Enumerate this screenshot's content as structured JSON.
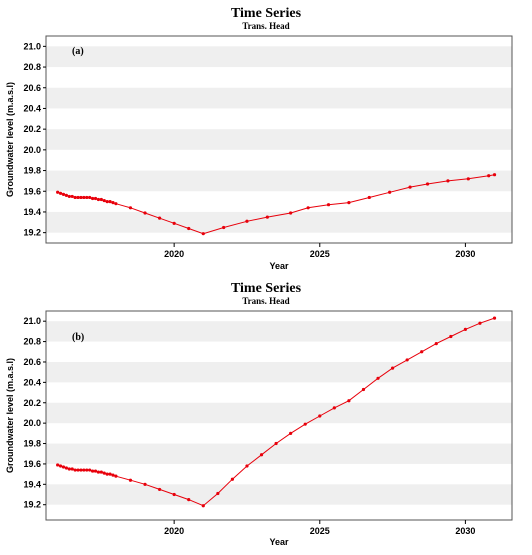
{
  "colors": {
    "series": "#e8000b",
    "band": "#efefef",
    "frame": "#555555"
  },
  "chart_data": [
    {
      "type": "line",
      "title": "Time Series",
      "subtitle": "Trans. Head",
      "panel_label": "(a)",
      "xlabel": "Year",
      "ylabel": "Groundwater level (m.a.s.l)",
      "xlim": [
        2015.6,
        2031.6
      ],
      "ylim": [
        19.1,
        21.1
      ],
      "yticks": [
        19.2,
        19.4,
        19.6,
        19.8,
        20.0,
        20.2,
        20.4,
        20.6,
        20.8,
        21.0
      ],
      "xticks": [
        2020,
        2025,
        2030
      ],
      "grid": "horizontal bands",
      "series": [
        {
          "x": [
            2016.0,
            2016.1,
            2016.2,
            2016.3,
            2016.4,
            2016.5,
            2016.6,
            2016.7,
            2016.8,
            2016.9,
            2017.0,
            2017.1,
            2017.2,
            2017.3,
            2017.4,
            2017.5,
            2017.6,
            2017.7,
            2017.8,
            2017.9,
            2018.0,
            2018.5,
            2019.0,
            2019.5,
            2020.0,
            2020.5,
            2021.0,
            2021.7,
            2022.5,
            2023.2,
            2024.0,
            2024.6,
            2025.3,
            2026.0,
            2026.7,
            2027.4,
            2028.1,
            2028.7,
            2029.4,
            2030.1,
            2030.8,
            2031.0
          ],
          "y": [
            19.59,
            19.58,
            19.57,
            19.56,
            19.55,
            19.55,
            19.54,
            19.54,
            19.54,
            19.54,
            19.54,
            19.54,
            19.53,
            19.53,
            19.52,
            19.52,
            19.51,
            19.5,
            19.5,
            19.49,
            19.48,
            19.44,
            19.39,
            19.34,
            19.29,
            19.24,
            19.19,
            19.25,
            19.31,
            19.35,
            19.39,
            19.44,
            19.47,
            19.49,
            19.54,
            19.59,
            19.64,
            19.67,
            19.7,
            19.72,
            19.75,
            19.76
          ]
        }
      ]
    },
    {
      "type": "line",
      "title": "Time Series",
      "subtitle": "Trans. Head",
      "panel_label": "(b)",
      "xlabel": "Year",
      "ylabel": "Groundwater level (m.a.s.l)",
      "xlim": [
        2015.6,
        2031.6
      ],
      "ylim": [
        19.05,
        21.1
      ],
      "yticks": [
        19.2,
        19.4,
        19.6,
        19.8,
        20.0,
        20.2,
        20.4,
        20.6,
        20.8,
        21.0
      ],
      "xticks": [
        2020,
        2025,
        2030
      ],
      "grid": "horizontal bands",
      "series": [
        {
          "x": [
            2016.0,
            2016.1,
            2016.2,
            2016.3,
            2016.4,
            2016.5,
            2016.6,
            2016.7,
            2016.8,
            2016.9,
            2017.0,
            2017.1,
            2017.2,
            2017.3,
            2017.4,
            2017.5,
            2017.6,
            2017.7,
            2017.8,
            2017.9,
            2018.0,
            2018.5,
            2019.0,
            2019.5,
            2020.0,
            2020.5,
            2021.0,
            2021.5,
            2022.0,
            2022.5,
            2023.0,
            2023.5,
            2024.0,
            2024.5,
            2025.0,
            2025.5,
            2026.0,
            2026.5,
            2027.0,
            2027.5,
            2028.0,
            2028.5,
            2029.0,
            2029.5,
            2030.0,
            2030.5,
            2031.0
          ],
          "y": [
            19.59,
            19.58,
            19.57,
            19.56,
            19.55,
            19.55,
            19.54,
            19.54,
            19.54,
            19.54,
            19.54,
            19.54,
            19.53,
            19.53,
            19.52,
            19.52,
            19.51,
            19.5,
            19.5,
            19.49,
            19.48,
            19.44,
            19.4,
            19.35,
            19.3,
            19.25,
            19.19,
            19.31,
            19.45,
            19.58,
            19.69,
            19.8,
            19.9,
            19.99,
            20.07,
            20.15,
            20.22,
            20.33,
            20.44,
            20.54,
            20.62,
            20.7,
            20.78,
            20.85,
            20.92,
            20.98,
            21.03
          ]
        }
      ]
    }
  ]
}
